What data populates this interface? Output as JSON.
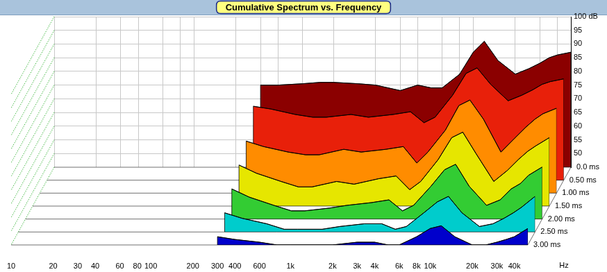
{
  "chart_data": {
    "type": "waterfall",
    "title": "Cumulative Spectrum vs. Frequency",
    "xlabel": "Hz",
    "log": "x",
    "grid": true,
    "xlim": [
      10,
      50000
    ],
    "xticks": [
      10,
      20,
      30,
      40,
      60,
      80,
      100,
      200,
      300,
      400,
      600,
      {
        "value": 1000,
        "label": "1k"
      },
      {
        "value": 2000,
        "label": "2k"
      },
      {
        "value": 3000,
        "label": "3k"
      },
      {
        "value": 4000,
        "label": "4k"
      },
      {
        "value": 6000,
        "label": "6k"
      },
      {
        "value": 8000,
        "label": "8k"
      },
      {
        "value": 10000,
        "label": "10k"
      },
      {
        "value": 20000,
        "label": "20k"
      },
      {
        "value": 30000,
        "label": "30k"
      },
      {
        "value": 40000,
        "label": "40k"
      }
    ],
    "ylim": [
      45,
      100
    ],
    "yticks": [
      50,
      55,
      60,
      65,
      70,
      75,
      80,
      85,
      90,
      95,
      {
        "value": 100,
        "label": "100 dB"
      }
    ],
    "zlim": [
      0,
      3
    ],
    "zticks": [
      {
        "value": 0,
        "label": "0.0 ms"
      },
      {
        "value": 0.5,
        "label": "0.50 ms"
      },
      {
        "value": 1,
        "label": "1.00 ms"
      },
      {
        "value": 1.5,
        "label": "1.50 ms"
      },
      {
        "value": 2,
        "label": "2.00 ms"
      },
      {
        "value": 2.5,
        "label": "2.50 ms"
      },
      {
        "value": 3,
        "label": "3.00 ms"
      }
    ],
    "x": [
      300,
      400,
      600,
      800,
      1000,
      1500,
      2000,
      3000,
      4000,
      5000,
      6000,
      8000,
      10000,
      12000,
      15000,
      20000,
      25000,
      30000,
      35000,
      40000,
      50000
    ],
    "series": [
      {
        "z": 0,
        "color": "#8b0000",
        "values": [
          75,
          75,
          75.5,
          76,
          76,
          75.5,
          75,
          73,
          75,
          74,
          74,
          79,
          87,
          91,
          84,
          79,
          81,
          83,
          85,
          86,
          87
        ]
      },
      {
        "z": 0.5,
        "color": "#e8200a",
        "values": [
          72,
          71,
          69,
          68,
          68,
          69,
          68,
          69,
          70,
          66,
          68,
          76,
          84,
          86,
          80,
          74,
          76,
          78,
          80,
          81,
          82
        ]
      },
      {
        "z": 1,
        "color": "#ff8c00",
        "values": [
          64,
          62,
          60,
          59,
          59,
          61,
          60,
          61,
          62,
          56,
          60,
          68,
          77,
          79,
          72,
          60,
          65,
          69,
          72,
          74,
          76
        ]
      },
      {
        "z": 1.5,
        "color": "#e6e600",
        "values": [
          60,
          57,
          54,
          52,
          52,
          54,
          53,
          55,
          56,
          51,
          54,
          62,
          70,
          72,
          64,
          54,
          58,
          62,
          65,
          67,
          70
        ]
      },
      {
        "z": 2,
        "color": "#33cc33",
        "values": [
          56,
          53,
          50,
          48,
          48,
          49,
          50,
          51,
          52,
          48,
          50,
          57,
          63,
          65,
          57,
          50,
          52,
          56,
          58,
          61,
          64
        ]
      },
      {
        "z": 2.5,
        "color": "#00cccc",
        "values": [
          52,
          50,
          48,
          46,
          46,
          46,
          47,
          48,
          48,
          46,
          47,
          52,
          56,
          58,
          52,
          47,
          48,
          50,
          52,
          54,
          58
        ]
      },
      {
        "z": 3,
        "color": "#0000cc",
        "values": [
          48,
          47,
          46,
          45,
          45,
          45,
          45,
          46,
          46,
          45,
          45,
          48,
          51,
          52,
          48,
          45,
          45,
          46,
          47,
          48,
          51
        ]
      }
    ]
  }
}
